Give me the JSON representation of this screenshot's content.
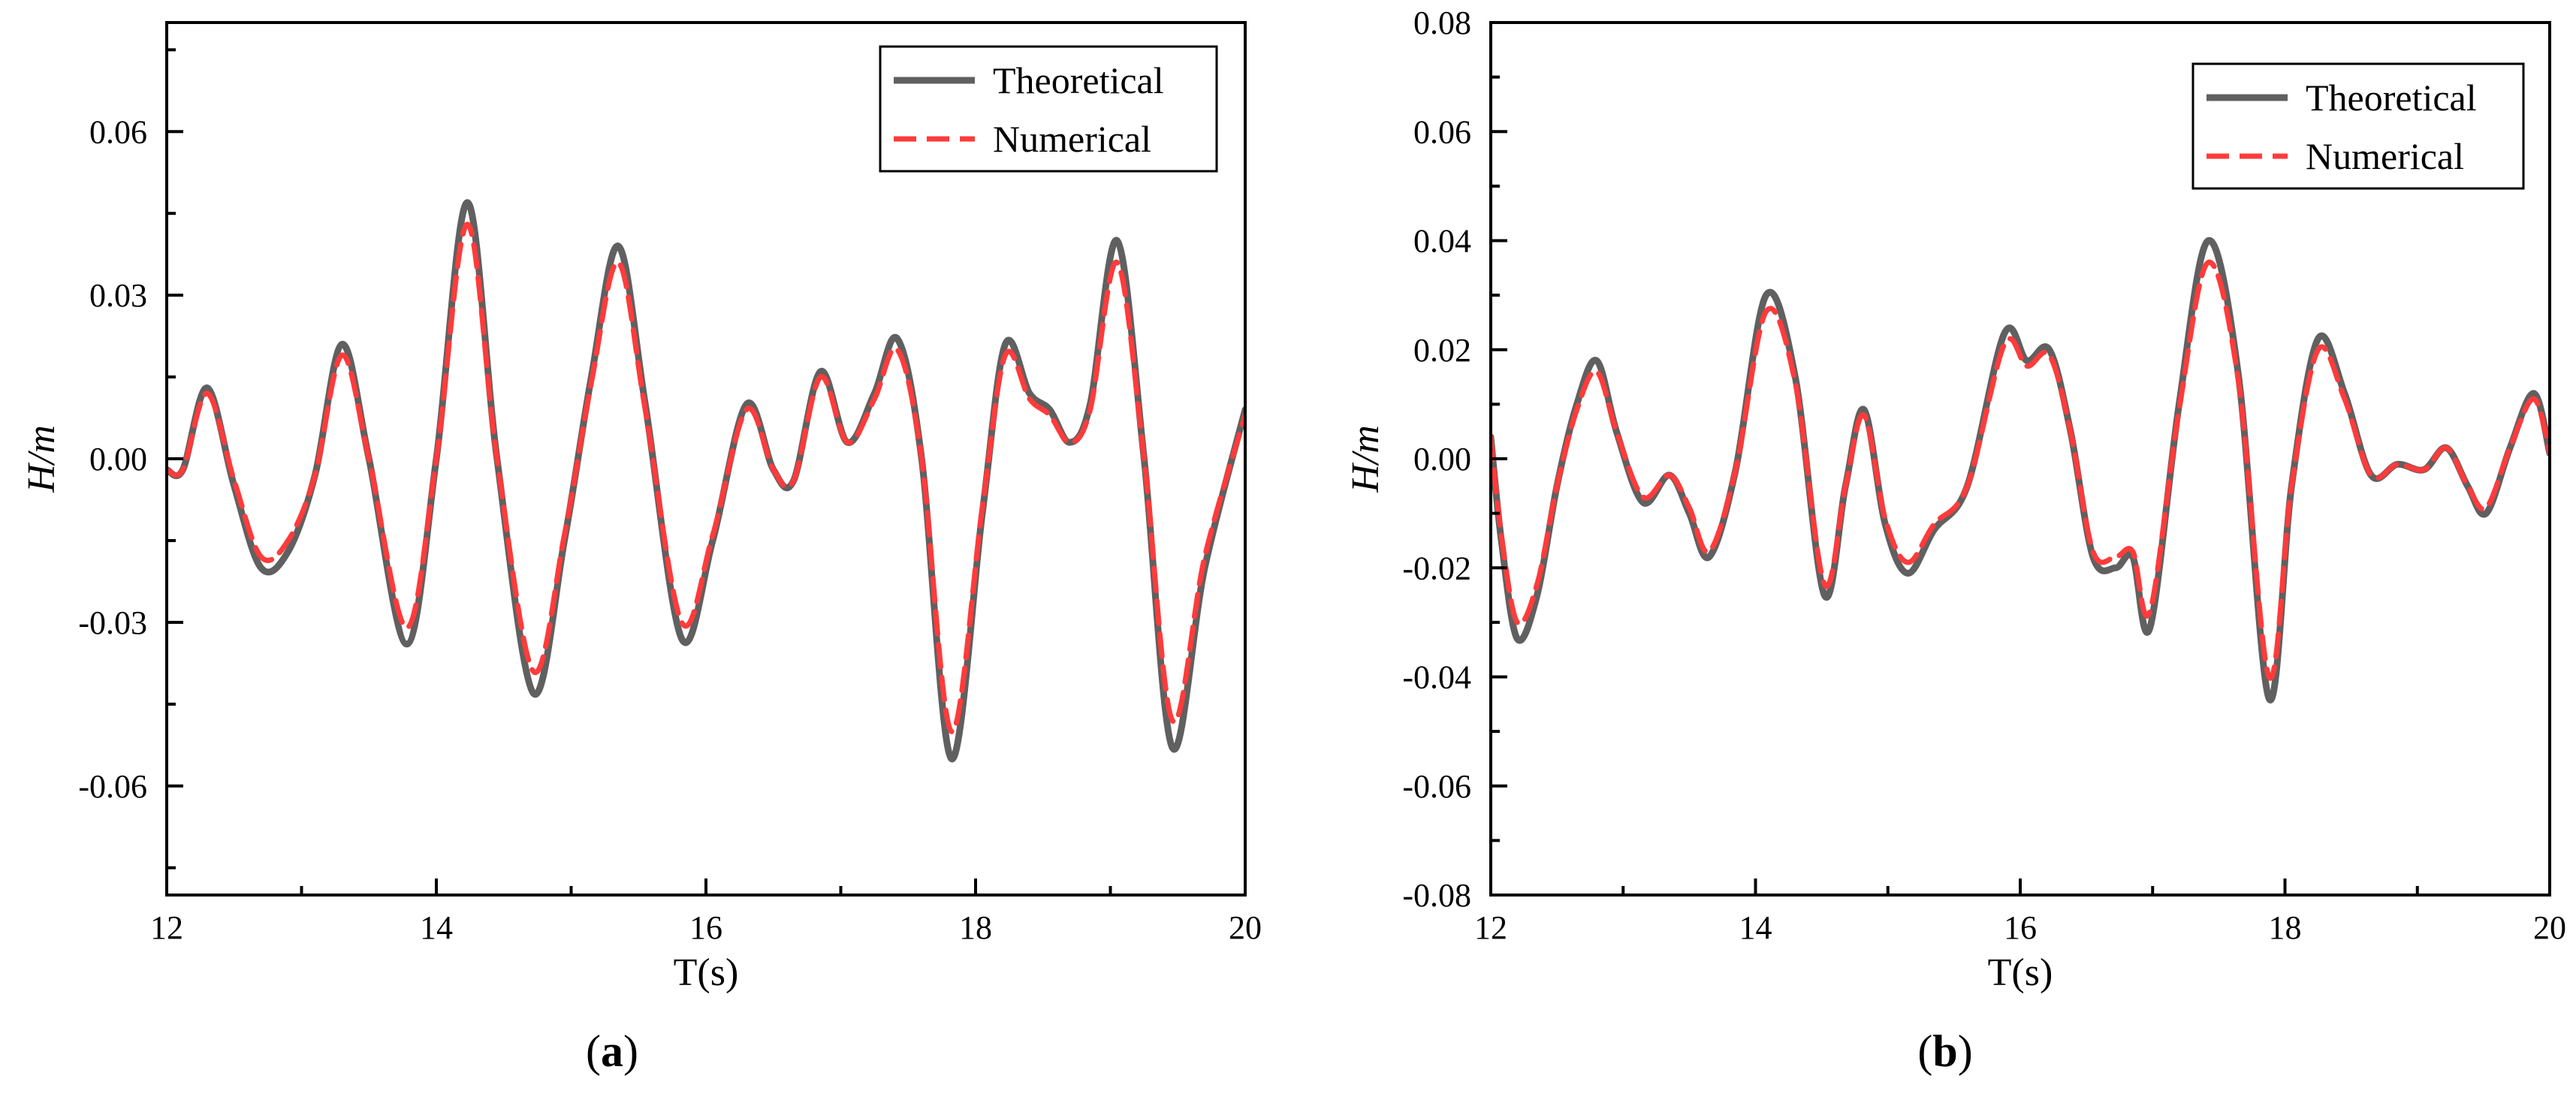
{
  "figure": {
    "panels": [
      {
        "label_open": "(",
        "label_letter": "a",
        "label_close": ")"
      },
      {
        "label_open": "(",
        "label_letter": "b",
        "label_close": ")"
      }
    ]
  },
  "chart_data": [
    {
      "type": "line",
      "xlabel": "T(s)",
      "ylabel": "H/m",
      "xlim": [
        12,
        20
      ],
      "ylim": [
        -0.08,
        0.08
      ],
      "xticks": [
        12,
        14,
        16,
        18,
        20
      ],
      "xtick_labels": [
        "12",
        "14",
        "16",
        "18",
        "20"
      ],
      "yticks": [
        -0.06,
        -0.03,
        0.0,
        0.03,
        0.06
      ],
      "ytick_labels": [
        "-0.06",
        "-0.03",
        "0.00",
        "0.03",
        "0.06"
      ],
      "grid": false,
      "legend_position": "top-right",
      "series": [
        {
          "name": "Theoretical",
          "color": "#606060",
          "style": "solid",
          "x": [
            12.0,
            12.12,
            12.3,
            12.5,
            12.7,
            12.9,
            13.1,
            13.3,
            13.5,
            13.78,
            14.0,
            14.23,
            14.45,
            14.72,
            14.95,
            15.15,
            15.35,
            15.55,
            15.82,
            16.05,
            16.3,
            16.5,
            16.65,
            16.85,
            17.05,
            17.25,
            17.42,
            17.6,
            17.82,
            18.05,
            18.22,
            18.4,
            18.55,
            18.7,
            18.85,
            19.05,
            19.25,
            19.46,
            19.7,
            20.0
          ],
          "y": [
            -0.002,
            -0.002,
            0.013,
            -0.005,
            -0.02,
            -0.017,
            -0.003,
            0.021,
            0.0,
            -0.034,
            0.0,
            0.047,
            0.0,
            -0.043,
            -0.015,
            0.015,
            0.039,
            0.01,
            -0.033,
            -0.015,
            0.01,
            -0.002,
            -0.004,
            0.016,
            0.003,
            0.012,
            0.022,
            0.0,
            -0.055,
            -0.01,
            0.021,
            0.012,
            0.009,
            0.003,
            0.01,
            0.04,
            0.0,
            -0.053,
            -0.02,
            0.009
          ]
        },
        {
          "name": "Numerical",
          "color": "#ff3b3b",
          "style": "dashed",
          "x": [
            12.0,
            12.12,
            12.3,
            12.5,
            12.7,
            12.9,
            13.1,
            13.3,
            13.5,
            13.78,
            14.0,
            14.23,
            14.45,
            14.72,
            14.95,
            15.15,
            15.35,
            15.55,
            15.82,
            16.05,
            16.3,
            16.5,
            16.65,
            16.85,
            17.05,
            17.25,
            17.42,
            17.6,
            17.82,
            18.05,
            18.22,
            18.4,
            18.55,
            18.7,
            18.85,
            19.05,
            19.25,
            19.46,
            19.7,
            20.0
          ],
          "y": [
            -0.002,
            -0.002,
            0.012,
            -0.004,
            -0.018,
            -0.015,
            -0.003,
            0.019,
            0.0,
            -0.031,
            0.0,
            0.043,
            0.0,
            -0.039,
            -0.014,
            0.014,
            0.036,
            0.009,
            -0.03,
            -0.014,
            0.009,
            -0.002,
            -0.004,
            0.015,
            0.003,
            0.011,
            0.02,
            0.0,
            -0.05,
            -0.009,
            0.019,
            0.011,
            0.008,
            0.003,
            0.009,
            0.036,
            0.0,
            -0.048,
            -0.018,
            0.008
          ]
        }
      ]
    },
    {
      "type": "line",
      "xlabel": "T(s)",
      "ylabel": "H/m",
      "xlim": [
        12,
        20
      ],
      "ylim": [
        -0.08,
        0.08
      ],
      "xticks": [
        12,
        14,
        16,
        18,
        20
      ],
      "xtick_labels": [
        "12",
        "14",
        "16",
        "18",
        "20"
      ],
      "yticks": [
        -0.08,
        -0.06,
        -0.04,
        -0.02,
        0.0,
        0.02,
        0.04,
        0.06,
        0.08
      ],
      "ytick_labels": [
        "-0.08",
        "-0.06",
        "-0.04",
        "-0.02",
        "0.00",
        "0.02",
        "0.04",
        "0.06",
        "0.08"
      ],
      "grid": false,
      "legend_position": "top-right",
      "series": [
        {
          "name": "Theoretical",
          "color": "#606060",
          "style": "solid",
          "x": [
            12.0,
            12.08,
            12.2,
            12.35,
            12.5,
            12.65,
            12.8,
            12.95,
            13.15,
            13.35,
            13.5,
            13.65,
            13.85,
            14.08,
            14.3,
            14.52,
            14.68,
            14.82,
            14.98,
            15.15,
            15.35,
            15.6,
            15.88,
            16.05,
            16.22,
            16.38,
            16.55,
            16.72,
            16.85,
            16.98,
            17.2,
            17.42,
            17.65,
            17.88,
            18.05,
            18.25,
            18.45,
            18.65,
            18.85,
            19.05,
            19.22,
            19.38,
            19.52,
            19.7,
            19.88,
            20.0
          ],
          "y": [
            0.004,
            -0.015,
            -0.033,
            -0.025,
            -0.005,
            0.01,
            0.018,
            0.005,
            -0.008,
            -0.003,
            -0.01,
            -0.018,
            -0.002,
            0.03,
            0.015,
            -0.025,
            -0.005,
            0.009,
            -0.012,
            -0.021,
            -0.013,
            -0.005,
            0.023,
            0.018,
            0.02,
            0.005,
            -0.018,
            -0.02,
            -0.018,
            -0.031,
            0.01,
            0.04,
            0.015,
            -0.044,
            -0.005,
            0.022,
            0.012,
            -0.003,
            -0.001,
            -0.002,
            0.002,
            -0.005,
            -0.01,
            0.002,
            0.012,
            0.001
          ]
        },
        {
          "name": "Numerical",
          "color": "#ff3b3b",
          "style": "dashed",
          "x": [
            12.0,
            12.08,
            12.2,
            12.35,
            12.5,
            12.65,
            12.8,
            12.95,
            13.15,
            13.35,
            13.5,
            13.65,
            13.85,
            14.08,
            14.3,
            14.52,
            14.68,
            14.82,
            14.98,
            15.15,
            15.35,
            15.6,
            15.88,
            16.05,
            16.22,
            16.38,
            16.55,
            16.72,
            16.85,
            16.98,
            17.2,
            17.42,
            17.65,
            17.88,
            18.05,
            18.25,
            18.45,
            18.65,
            18.85,
            19.05,
            19.22,
            19.38,
            19.52,
            19.7,
            19.88,
            20.0
          ],
          "y": [
            0.004,
            -0.014,
            -0.03,
            -0.023,
            -0.005,
            0.009,
            0.016,
            0.005,
            -0.007,
            -0.003,
            -0.009,
            -0.017,
            -0.002,
            0.027,
            0.014,
            -0.023,
            -0.005,
            0.008,
            -0.011,
            -0.019,
            -0.012,
            -0.005,
            0.021,
            0.017,
            0.019,
            0.005,
            -0.017,
            -0.018,
            -0.017,
            -0.028,
            0.009,
            0.036,
            0.014,
            -0.04,
            -0.005,
            0.02,
            0.011,
            -0.003,
            -0.001,
            -0.002,
            0.002,
            -0.005,
            -0.009,
            0.002,
            0.011,
            0.001
          ]
        }
      ]
    }
  ]
}
